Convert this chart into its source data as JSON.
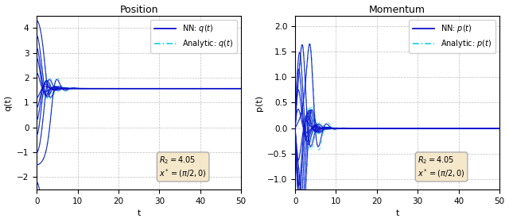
{
  "title_left": "Position",
  "title_right": "Momentum",
  "ylabel_left": "q(t)",
  "ylabel_right": "p(t)",
  "xlabel": "t",
  "xlim": [
    0,
    50
  ],
  "ylim_left": [
    -2.5,
    4.5
  ],
  "ylim_right": [
    -1.2,
    2.2
  ],
  "yticks_left": [
    -2,
    -1,
    0,
    1,
    2,
    3,
    4
  ],
  "yticks_right": [
    -1.0,
    -0.5,
    0.0,
    0.5,
    1.0,
    1.5,
    2.0
  ],
  "xticks": [
    0,
    10,
    20,
    30,
    40,
    50
  ],
  "target_q": 1.5707963267948966,
  "target_p": 0.0,
  "nn_color": "#1010CC",
  "analytic_color": "#00CCDD",
  "R2": "4.05",
  "x_star": "(\\pi/2, 0)",
  "legend_label_nn_q": "NN: $q(t)$",
  "legend_label_analytic_q": "Analytic: $q(t)$",
  "legend_label_nn_p": "NN: $p(t)$",
  "legend_label_analytic_p": "Analytic: $p(t)$",
  "t_end": 50,
  "t_steps": 5000,
  "q0_values": [
    -2.2,
    -1.5,
    -1.0,
    -0.3,
    0.3,
    0.8,
    1.2,
    2.2,
    2.8,
    3.2,
    3.7,
    4.3
  ],
  "p0_values": [
    0.0,
    0.0,
    0.0,
    0.0,
    0.0,
    0.0,
    0.0,
    0.0,
    0.0,
    0.0,
    0.0,
    0.0
  ]
}
